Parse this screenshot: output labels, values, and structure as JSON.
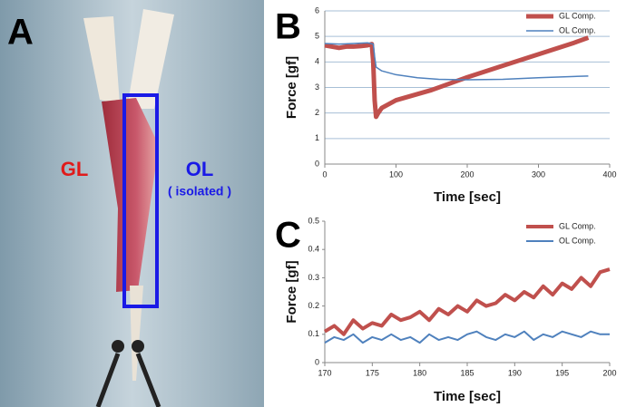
{
  "photo": {
    "label": "A",
    "muscle_label": "GL",
    "isolated_label": "OL",
    "isolated_note": "( isolated )"
  },
  "chart_data": [
    {
      "type": "line",
      "label": "B",
      "xlabel": "Time [sec]",
      "ylabel": "Force [gf]",
      "xlim": [
        0,
        400
      ],
      "xticks": [
        0,
        100,
        200,
        300,
        400
      ],
      "ylim": [
        0,
        6
      ],
      "yticks": [
        0,
        1,
        2,
        3,
        4,
        5,
        6
      ],
      "grid": true,
      "legend": "upper right",
      "series": [
        {
          "name": "GL Comp.",
          "color": "#c0504d",
          "width": 5,
          "x": [
            0,
            10,
            20,
            30,
            40,
            50,
            60,
            66,
            68,
            70,
            72,
            75,
            80,
            100,
            150,
            200,
            250,
            300,
            350,
            370
          ],
          "values": [
            4.65,
            4.6,
            4.55,
            4.6,
            4.6,
            4.62,
            4.65,
            4.7,
            4.0,
            2.5,
            1.85,
            2.0,
            2.2,
            2.5,
            2.9,
            3.4,
            3.85,
            4.3,
            4.75,
            4.95
          ]
        },
        {
          "name": "OL Comp.",
          "color": "#4f81bd",
          "width": 1.5,
          "x": [
            0,
            20,
            40,
            60,
            68,
            70,
            72,
            80,
            100,
            130,
            160,
            200,
            250,
            300,
            350,
            370
          ],
          "values": [
            4.72,
            4.7,
            4.72,
            4.75,
            4.7,
            4.2,
            3.8,
            3.65,
            3.5,
            3.38,
            3.32,
            3.3,
            3.32,
            3.38,
            3.43,
            3.45
          ]
        }
      ]
    },
    {
      "type": "line",
      "label": "C",
      "xlabel": "Time [sec]",
      "ylabel": "Force [gf]",
      "xlim": [
        170,
        200
      ],
      "xticks": [
        170,
        175,
        180,
        185,
        190,
        195,
        200
      ],
      "ylim": [
        0,
        0.5
      ],
      "yticks": [
        0,
        0.1,
        0.2,
        0.3,
        0.4,
        0.5
      ],
      "grid": false,
      "legend": "upper right",
      "x": [
        170,
        171,
        172,
        173,
        174,
        175,
        176,
        177,
        178,
        179,
        180,
        181,
        182,
        183,
        184,
        185,
        186,
        187,
        188,
        189,
        190,
        191,
        192,
        193,
        194,
        195,
        196,
        197,
        198,
        199,
        200
      ],
      "series": [
        {
          "name": "GL Comp.",
          "color": "#c0504d",
          "width": 4,
          "values": [
            0.11,
            0.13,
            0.1,
            0.15,
            0.12,
            0.14,
            0.13,
            0.17,
            0.15,
            0.16,
            0.18,
            0.15,
            0.19,
            0.17,
            0.2,
            0.18,
            0.22,
            0.2,
            0.21,
            0.24,
            0.22,
            0.25,
            0.23,
            0.27,
            0.24,
            0.28,
            0.26,
            0.3,
            0.27,
            0.32,
            0.33
          ]
        },
        {
          "name": "OL Comp.",
          "color": "#4f81bd",
          "width": 2,
          "values": [
            0.07,
            0.09,
            0.08,
            0.1,
            0.07,
            0.09,
            0.08,
            0.1,
            0.08,
            0.09,
            0.07,
            0.1,
            0.08,
            0.09,
            0.08,
            0.1,
            0.11,
            0.09,
            0.08,
            0.1,
            0.09,
            0.11,
            0.08,
            0.1,
            0.09,
            0.11,
            0.1,
            0.09,
            0.11,
            0.1,
            0.1
          ]
        }
      ]
    }
  ]
}
